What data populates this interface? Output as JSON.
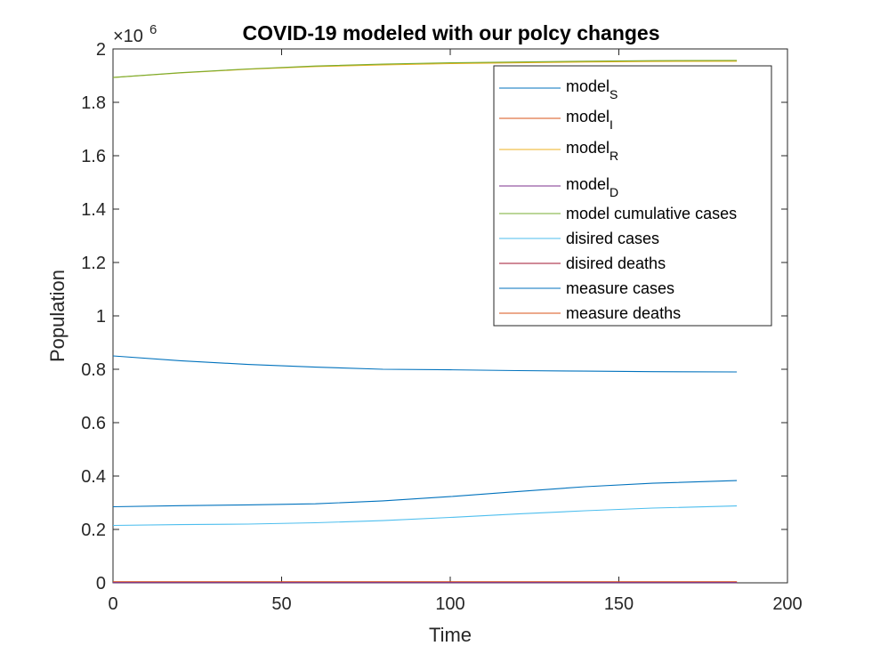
{
  "chart_data": {
    "type": "line",
    "title": "COVID-19 modeled with our polcy changes",
    "xlabel": "Time",
    "ylabel": "Population",
    "xlim": [
      0,
      200
    ],
    "ylim": [
      0,
      2
    ],
    "y_exponent_label": "×10",
    "y_exponent": "6",
    "xticks": [
      "0",
      "50",
      "100",
      "150",
      "200"
    ],
    "yticks": [
      "0",
      "0.2",
      "0.4",
      "0.6",
      "0.8",
      "1",
      "1.2",
      "1.4",
      "1.6",
      "1.8",
      "2"
    ],
    "grid": false,
    "legend_position": "top-right",
    "x": [
      0,
      20,
      40,
      60,
      80,
      100,
      120,
      140,
      160,
      185
    ],
    "series": [
      {
        "name": "model",
        "subscript": "S",
        "color": "#0072BD",
        "values": [
          0.85,
          0.832,
          0.818,
          0.808,
          0.8,
          0.798,
          0.795,
          0.793,
          0.791,
          0.79
        ]
      },
      {
        "name": "model",
        "subscript": "I",
        "color": "#D95319",
        "values": [
          0.002,
          0.002,
          0.002,
          0.002,
          0.002,
          0.002,
          0.002,
          0.002,
          0.002,
          0.002
        ]
      },
      {
        "name": "model",
        "subscript": "R",
        "color": "#EDB120",
        "values": [
          1.893,
          1.91,
          1.924,
          1.934,
          1.94,
          1.945,
          1.948,
          1.951,
          1.953,
          1.954
        ]
      },
      {
        "name": "model",
        "subscript": "D",
        "color": "#7E2F8E",
        "values": [
          0.001,
          0.001,
          0.001,
          0.001,
          0.001,
          0.001,
          0.001,
          0.001,
          0.001,
          0.001
        ]
      },
      {
        "name": "model cumulative cases",
        "color": "#77AC30",
        "values": [
          1.893,
          1.911,
          1.925,
          1.936,
          1.943,
          1.948,
          1.951,
          1.954,
          1.956,
          1.957
        ]
      },
      {
        "name": "disired cases",
        "color": "#4DBEEE",
        "values": [
          0.215,
          0.218,
          0.22,
          0.225,
          0.233,
          0.245,
          0.258,
          0.27,
          0.28,
          0.288
        ]
      },
      {
        "name": "disired deaths",
        "color": "#A2142F",
        "values": [
          0.003,
          0.003,
          0.003,
          0.003,
          0.003,
          0.003,
          0.003,
          0.003,
          0.003,
          0.003
        ]
      },
      {
        "name": "measure cases",
        "color": "#0072BD",
        "values": [
          0.285,
          0.289,
          0.292,
          0.296,
          0.307,
          0.323,
          0.342,
          0.36,
          0.373,
          0.383
        ]
      },
      {
        "name": "measure deaths",
        "color": "#D95319",
        "values": [
          0.004,
          0.004,
          0.004,
          0.004,
          0.004,
          0.004,
          0.004,
          0.004,
          0.004,
          0.004
        ]
      }
    ]
  }
}
